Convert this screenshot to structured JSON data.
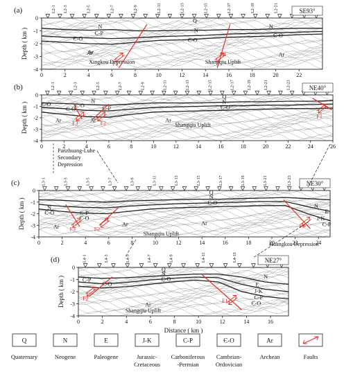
{
  "panels": [
    {
      "label": "(a)",
      "direction": "SE93°",
      "ylabel": "Depth ( km )",
      "yticks": [
        "0",
        "-1",
        "-2",
        "-3",
        "-4"
      ],
      "xticks": [
        "0",
        "2",
        "4",
        "6",
        "8",
        "10",
        "12",
        "14",
        "16",
        "18",
        "20",
        "22"
      ],
      "stations": [
        "L2-1",
        "L2-3",
        "L2-5",
        "L2-7",
        "L2-9",
        "L2-11",
        "L2-13",
        "L2-15",
        "L2-17",
        "L2-19",
        "L2-21"
      ],
      "units": [
        "Q",
        "N",
        "C-P",
        "Є-O",
        "Ar",
        "N",
        "Є-O",
        "N",
        "Є-O",
        "Ar",
        "Ar"
      ],
      "regions": [
        "Xingkou Depression",
        "Shangqiu Uplift"
      ],
      "faults": [
        "F5",
        "F4"
      ]
    },
    {
      "label": "(b)",
      "direction": "NE40°",
      "ylabel": "Depth ( km )",
      "yticks": [
        "0",
        "-1",
        "-2",
        "-3",
        "-4"
      ],
      "xticks": [
        "0",
        "2",
        "4",
        "6",
        "8",
        "10",
        "12",
        "14",
        "16",
        "18",
        "20",
        "22",
        "24",
        "26"
      ],
      "stations": [
        "L2-1",
        "L2-3",
        "L2-5",
        "L2-7",
        "L2-9",
        "L2-11",
        "L2-13",
        "L2-15",
        "L2-17",
        "L2-19",
        "L2-21",
        "L2-23"
      ],
      "units": [
        "Є-O",
        "N",
        "Є-O",
        "C-P",
        "Ar",
        "Ar",
        "Ar",
        "Q",
        "N",
        "Є-O",
        "Є-O"
      ],
      "regions": [
        "Shangqiu Uplift"
      ],
      "faults": [
        "F3",
        "F2",
        "F1"
      ]
    },
    {
      "label": "(c)",
      "direction": "NE30°",
      "ylabel": "Depth ( km )",
      "yticks": [
        "0",
        "-1",
        "-2",
        "-3",
        "-4"
      ],
      "xticks": [
        "0",
        "2",
        "4",
        "6",
        "8",
        "10",
        "12",
        "14",
        "16",
        "18",
        "20",
        "22",
        "24"
      ],
      "stations": [
        "L3-1",
        "L3-3",
        "L3-5",
        "L3-7",
        "L3-9",
        "L3-11",
        "L3-13",
        "L3-15",
        "L3-17",
        "L3-19",
        "L3-21",
        "L3-23"
      ],
      "units": [
        "N",
        "Є-O",
        "C-P",
        "Є-O",
        "Ar",
        "Ar",
        "Q",
        "N",
        "Є-O",
        "Ar",
        "N",
        "E",
        "J-K",
        "C-P"
      ],
      "regions": [
        "Shangqiu Uplift",
        "Huangkou Depression"
      ],
      "faults": [
        "F3",
        "F2",
        "F1"
      ]
    },
    {
      "label": "(d)",
      "direction": "NE27°",
      "ylabel": "Depth ( km )",
      "xlabel": "Distance ( km )",
      "yticks": [
        "0",
        "-1",
        "-2",
        "-3",
        "-4"
      ],
      "xticks": [
        "0",
        "2",
        "4",
        "6",
        "8",
        "10",
        "12",
        "14",
        "16"
      ],
      "stations": [
        "L4-1",
        "L4-3",
        "L4-5",
        "L4-7",
        "L4-9",
        "L4-11",
        "L4-13"
      ],
      "units": [
        "C-P",
        "Є-O",
        "Q",
        "N",
        "Є-O",
        "N",
        "E",
        "J-K",
        "C-P",
        "Є-O",
        "Ar"
      ],
      "regions": [
        "Shangqiu Uplift"
      ],
      "faults": [
        "F2",
        "F1"
      ]
    }
  ],
  "secondary_label": [
    "Panzhuang-Luhe",
    "Secondary",
    "Depression"
  ],
  "legend": [
    {
      "symbol": "Q",
      "name": [
        "Quaternary"
      ]
    },
    {
      "symbol": "N",
      "name": [
        "Neogene"
      ]
    },
    {
      "symbol": "E",
      "name": [
        "Paleogene"
      ]
    },
    {
      "symbol": "J-K",
      "name": [
        "Jurassic-",
        "Cretaceous"
      ]
    },
    {
      "symbol": "C-P",
      "name": [
        "Carboniferous",
        "-Permian"
      ]
    },
    {
      "symbol": "Є-O",
      "name": [
        "Cambrian-",
        "Ordovician"
      ]
    },
    {
      "symbol": "Ar",
      "name": [
        "Archean"
      ]
    },
    {
      "symbol": "",
      "name": [
        "Faults"
      ]
    }
  ],
  "colors": {
    "fault": "#e0322a",
    "contour": "#8a8a8a",
    "bold": "#222222",
    "frame": "#222222"
  }
}
